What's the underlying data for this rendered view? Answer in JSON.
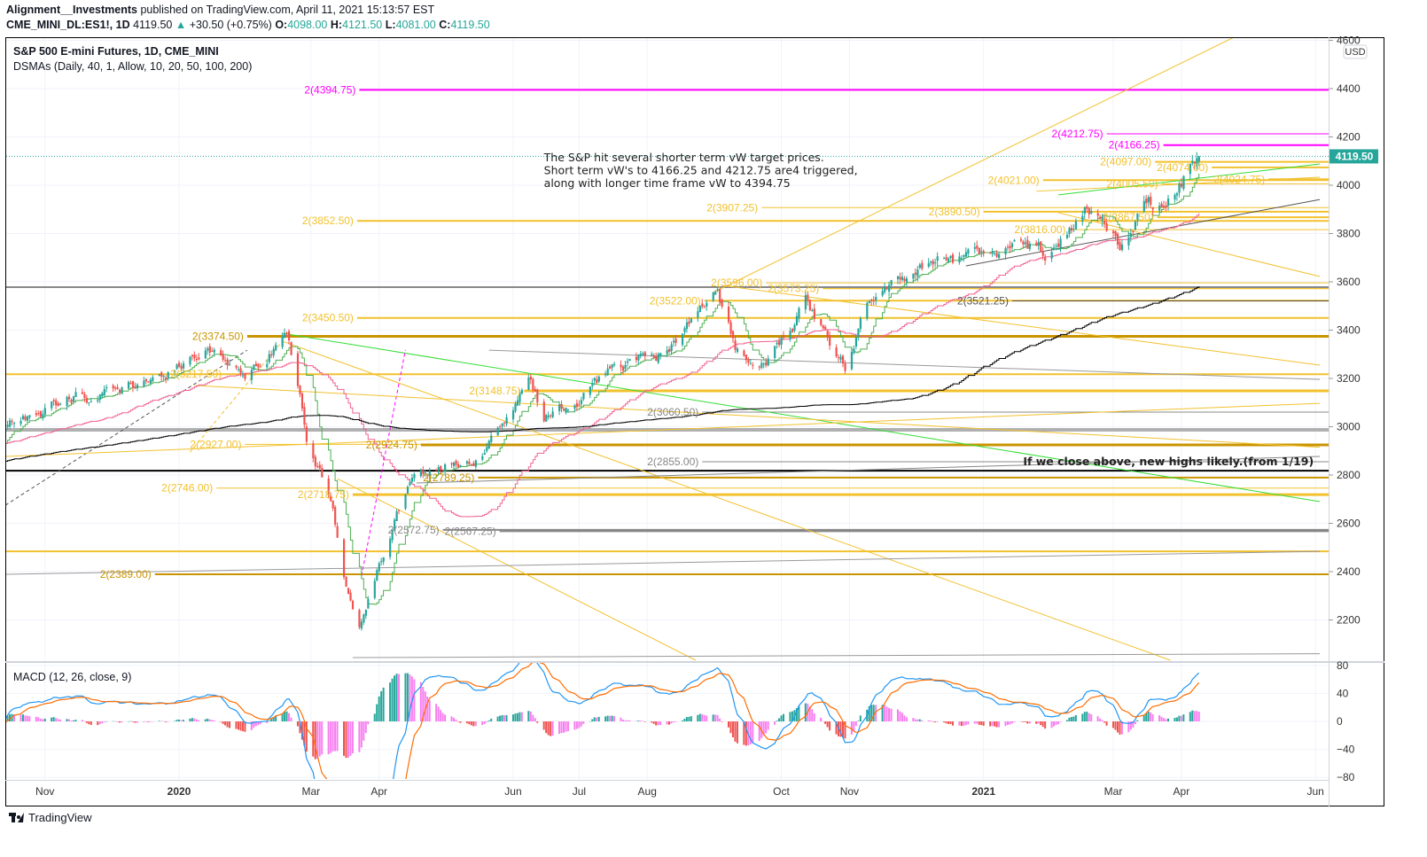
{
  "header": {
    "publisher": "Alignment__Investments",
    "published_text": " published on TradingView.com, April 11, 2021 15:13:57 EST",
    "symbol": "CME_MINI_DL:ES1!, 1D",
    "last": "4119.50",
    "change": "+30.50 (+0.75%)",
    "o_label": "O:",
    "o": "4098.00",
    "h_label": "H:",
    "h": "4121.50",
    "l_label": "L:",
    "l": "4081.00",
    "c_label": "C:",
    "c": "4119.50"
  },
  "legend": {
    "title": "S&P 500 E-mini Futures, 1D, CME_MINI",
    "indicator": "DSMAs (Daily, 40, 1, Allow, 10, 20, 50, 100, 200)"
  },
  "macd_legend": "MACD (12, 26, close, 9)",
  "price_axis": {
    "currency": "USD",
    "ticks": [
      4600,
      4400,
      4200,
      4000,
      3800,
      3600,
      3400,
      3200,
      3000,
      2800,
      2600,
      2400,
      2200
    ]
  },
  "macd_axis": {
    "ticks": [
      80,
      40,
      0,
      -40,
      -80
    ]
  },
  "time_axis": [
    {
      "label": "Nov",
      "date": "2019-11-01"
    },
    {
      "label": "2020",
      "date": "2020-01-01",
      "bold": true
    },
    {
      "label": "Mar",
      "date": "2020-03-01"
    },
    {
      "label": "Apr",
      "date": "2020-04-01"
    },
    {
      "label": "Jun",
      "date": "2020-06-01"
    },
    {
      "label": "Jul",
      "date": "2020-07-01"
    },
    {
      "label": "Aug",
      "date": "2020-08-01"
    },
    {
      "label": "Oct",
      "date": "2020-10-01"
    },
    {
      "label": "Nov",
      "date": "2020-11-01"
    },
    {
      "label": "2021",
      "date": "2021-01-01",
      "bold": true
    },
    {
      "label": "Mar",
      "date": "2021-03-01"
    },
    {
      "label": "Apr",
      "date": "2021-04-01"
    },
    {
      "label": "Jun",
      "date": "2021-06-01"
    }
  ],
  "last_price": {
    "value": 4119.5,
    "label": "4119.50",
    "color": "#26a69a"
  },
  "annotations": {
    "note_lines": [
      "The S&P hit several shorter term vW target prices.",
      "Short term vW's to 4166.25 and 4212.75 are4 triggered,",
      "along with longer time frame vW to 4394.75"
    ],
    "note_date": "2020-06-15",
    "note_price": 4100,
    "highs_note": "If we close above, new highs likely.(from 1/19)",
    "highs_note_date": "2021-01-19",
    "highs_note_price": 2855
  },
  "footer": {
    "brand": "TradingView"
  },
  "colors": {
    "up": "#26a69a",
    "down": "#ef5350",
    "gold": "#f2c12e",
    "dark_gold": "#c99400",
    "magenta": "#ff00ff",
    "gray": "#888888",
    "sma_fast": "#4caf50",
    "sma_mid": "#f06292",
    "sma_slow": "#000000",
    "macd": "#2196f3",
    "signal": "#ff6d00",
    "hist_pos": "#26a69a",
    "hist_fade": "#f77ff0",
    "hist_neg": "#ef5350"
  },
  "chart_data": {
    "type": "candlestick",
    "symbol": "ES1!",
    "interval": "1D",
    "ylim": [
      2150,
      4600
    ],
    "macd_ylim": [
      -80,
      80
    ],
    "last_bar": {
      "date": "2021-04-09",
      "open": 4098.0,
      "high": 4121.5,
      "low": 4081.0,
      "close": 4119.5
    },
    "close_path": [
      [
        "2019-10-14",
        2965
      ],
      [
        "2019-11-01",
        3060
      ],
      [
        "2019-11-15",
        3115
      ],
      [
        "2019-12-02",
        3120
      ],
      [
        "2019-12-16",
        3190
      ],
      [
        "2020-01-02",
        3250
      ],
      [
        "2020-01-17",
        3320
      ],
      [
        "2020-01-31",
        3225
      ],
      [
        "2020-02-19",
        3390
      ],
      [
        "2020-02-28",
        2950
      ],
      [
        "2020-03-09",
        2750
      ],
      [
        "2020-03-16",
        2400
      ],
      [
        "2020-03-23",
        2200
      ],
      [
        "2020-04-01",
        2450
      ],
      [
        "2020-04-15",
        2780
      ],
      [
        "2020-05-01",
        2830
      ],
      [
        "2020-05-14",
        2840
      ],
      [
        "2020-06-01",
        3050
      ],
      [
        "2020-06-08",
        3220
      ],
      [
        "2020-06-15",
        3050
      ],
      [
        "2020-07-01",
        3110
      ],
      [
        "2020-07-15",
        3220
      ],
      [
        "2020-08-03",
        3290
      ],
      [
        "2020-08-17",
        3380
      ],
      [
        "2020-09-02",
        3570
      ],
      [
        "2020-09-10",
        3340
      ],
      [
        "2020-09-24",
        3240
      ],
      [
        "2020-10-12",
        3520
      ],
      [
        "2020-10-30",
        3260
      ],
      [
        "2020-11-10",
        3540
      ],
      [
        "2020-12-01",
        3660
      ],
      [
        "2020-12-15",
        3690
      ],
      [
        "2021-01-04",
        3700
      ],
      [
        "2021-01-15",
        3790
      ],
      [
        "2021-01-29",
        3700
      ],
      [
        "2021-02-16",
        3930
      ],
      [
        "2021-03-04",
        3760
      ],
      [
        "2021-03-15",
        3950
      ],
      [
        "2021-03-25",
        3900
      ],
      [
        "2021-04-01",
        4010
      ],
      [
        "2021-04-09",
        4119.5
      ]
    ],
    "indicators": {
      "dsma_lines": [
        10,
        50,
        200
      ],
      "macd": {
        "fast": 12,
        "slow": 26,
        "source": "close",
        "signal": 9
      }
    },
    "levels": [
      {
        "price": 4394.75,
        "label": "2(4394.75)",
        "color": "#ff00ff",
        "start": "2020-02-27",
        "width": 2
      },
      {
        "price": 4212.75,
        "label": "2(4212.75)",
        "color": "#ff00ff",
        "start": "2021-02-01",
        "width": 1
      },
      {
        "price": 4166.25,
        "label": "2(4166.25)",
        "color": "#ff00ff",
        "start": "2021-02-04",
        "width": 2
      },
      {
        "price": 4097.0,
        "label": "2(4097.00)",
        "color": "#f2c12e",
        "start": "2021-02-23",
        "width": 2
      },
      {
        "price": 4074.0,
        "label": "2(4074.00)",
        "color": "#f2c12e",
        "start": "2021-02-04",
        "width": 2
      },
      {
        "price": 4024.75,
        "label": "2(4024.75)",
        "color": "#f2c12e",
        "start": "2021-02-26",
        "width": 2
      },
      {
        "price": 4021.0,
        "label": "2(4021.00)",
        "color": "#f2c12e",
        "start": "2021-01-03",
        "width": 2
      },
      {
        "price": 4005.5,
        "label": "2(4005.50)",
        "color": "#f2c12e",
        "start": "2021-02-26",
        "width": 1
      },
      {
        "price": 3907.25,
        "label": "2(3907.25)",
        "color": "#f2c12e",
        "start": "2020-08-28",
        "width": 1
      },
      {
        "price": 3890.5,
        "label": "2(3890.50)",
        "color": "#f2c12e",
        "start": "2020-12-07",
        "width": 2
      },
      {
        "price": 3867.5,
        "label": "2(3867.50)",
        "color": "#f2c12e",
        "start": "2021-02-24",
        "width": 2
      },
      {
        "price": 3852.5,
        "label": "2(3852.50)",
        "color": "#f2c12e",
        "start": "2020-02-26",
        "width": 2
      },
      {
        "price": 3816.0,
        "label": "2(3816.00)",
        "color": "#f2c12e",
        "start": "2021-01-15",
        "width": 1
      },
      {
        "price": 3596.0,
        "label": "2(3596.00)",
        "color": "#f2c12e",
        "start": "2020-08-30",
        "width": 1
      },
      {
        "price": 3573.25,
        "label": "2(3573.25)",
        "color": "#f2c12e",
        "start": "2020-08-06",
        "width": 2
      },
      {
        "price": 3522.0,
        "label": "2(3522.00)",
        "color": "#f2c12e",
        "start": "2020-08-02",
        "width": 2
      },
      {
        "price": 3521.25,
        "label": "2(3521.25)",
        "color": "#555555",
        "start": "2020-12-20",
        "width": 1
      },
      {
        "price": 3450.5,
        "label": "2(3450.50)",
        "color": "#f2c12e",
        "start": "2020-02-26",
        "width": 2
      },
      {
        "price": 3374.5,
        "label": "2(3374.50)",
        "color": "#c99400",
        "start": "2020-01-07",
        "width": 3
      },
      {
        "price": 3217.5,
        "label": "2(3217.50)",
        "color": "#f2c12e",
        "start": "2019-12-28",
        "width": 2,
        "full": true
      },
      {
        "price": 3148.75,
        "label": "2(3148.75)",
        "color": "#f2c12e",
        "start": "2020-05-12",
        "width": 3
      },
      {
        "price": 3060.5,
        "label": "2(3060.50)",
        "color": "#888888",
        "start": "2020-08-01",
        "width": 1
      },
      {
        "price": 2927.0,
        "label": "2(2927.00)",
        "color": "#f2c12e",
        "start": "2020-01-06",
        "width": 1
      },
      {
        "price": 2924.75,
        "label": "2(2924.75)",
        "color": "#c99400",
        "start": "2020-03-26",
        "width": 3
      },
      {
        "price": 2855.0,
        "label": "2(2855.00)",
        "color": "#888888",
        "start": "2020-08-01",
        "width": 1
      },
      {
        "price": 2789.25,
        "label": "2(2789.25)",
        "color": "#c99400",
        "start": "2020-04-21",
        "width": 2
      },
      {
        "price": 2746.0,
        "label": "2(2746.00)",
        "color": "#f2c12e",
        "start": "2019-12-24",
        "width": 1
      },
      {
        "price": 2718.75,
        "label": "2(2718.75)",
        "color": "#f2c12e",
        "start": "2020-02-24",
        "width": 3
      },
      {
        "price": 2572.75,
        "label": "2(2572.75)",
        "color": "#888888",
        "start": "2020-04-05",
        "width": 2
      },
      {
        "price": 2567.25,
        "label": "2(2567.25)",
        "color": "#888888",
        "start": "2020-03-20",
        "width": 2
      },
      {
        "price": 2389.0,
        "label": "2(2389.00)",
        "color": "#c99400",
        "start": "2019-11-26",
        "width": 2
      },
      {
        "price": 3578,
        "label": "",
        "color": "#888888",
        "width": 2,
        "full": true
      },
      {
        "price": 2987,
        "label": "",
        "color": "#b0b0b0",
        "width": 4,
        "full": true
      },
      {
        "price": 2818,
        "label": "",
        "color": "#000000",
        "width": 2,
        "full": true
      },
      {
        "price": 2484,
        "label": "",
        "color": "#f2c12e",
        "width": 2,
        "full": true
      }
    ],
    "trend_lines": [
      {
        "from": [
          "2020-08-31",
          3556
        ],
        "to": [
          "2021-04-25",
          4613
        ],
        "color": "#f2c12e"
      },
      {
        "from": [
          "2020-02-17",
          3387
        ],
        "to": [
          "2021-06-03",
          2690
        ],
        "color": "#33dd33"
      },
      {
        "from": [
          "2019-10-14",
          2675
        ],
        "to": [
          "2020-02-01",
          3317
        ],
        "color": "#555555",
        "dash": true
      },
      {
        "from": [
          "2020-03-24",
          2382
        ],
        "to": [
          "2020-04-13",
          3318
        ],
        "color": "#ff00ff",
        "dash": true
      },
      {
        "from": [
          "2020-01-06",
          2895
        ],
        "to": [
          "2020-02-17",
          3354
        ],
        "color": "#f2c12e",
        "dash": true
      },
      {
        "from": [
          "2019-10-14",
          2877
        ],
        "to": [
          "2021-06-03",
          3097
        ],
        "color": "#f2c12e"
      },
      {
        "from": [
          "2020-03-13",
          2785
        ],
        "to": [
          "2020-08-23",
          2033
        ],
        "color": "#f2c12e"
      },
      {
        "from": [
          "2020-02-17",
          3354
        ],
        "to": [
          "2021-03-27",
          2033
        ],
        "color": "#f2c12e"
      },
      {
        "from": [
          "2020-01-08",
          3171
        ],
        "to": [
          "2021-06-03",
          2915
        ],
        "color": "#f2c12e"
      },
      {
        "from": [
          "2020-09-04",
          3585
        ],
        "to": [
          "2021-06-03",
          3255
        ],
        "color": "#f2c12e"
      },
      {
        "from": [
          "2020-05-21",
          3317
        ],
        "to": [
          "2021-06-03",
          3196
        ],
        "color": "#999999"
      },
      {
        "from": [
          "2020-04-18",
          2767
        ],
        "to": [
          "2021-06-03",
          2877
        ],
        "color": "#888888"
      },
      {
        "from": [
          "2019-10-14",
          2389
        ],
        "to": [
          "2021-06-03",
          2484
        ],
        "color": "#999999"
      },
      {
        "from": [
          "2020-12-24",
          3666
        ],
        "to": [
          "2021-06-03",
          3941
        ],
        "color": "#555555"
      },
      {
        "from": [
          "2021-02-04",
          3886
        ],
        "to": [
          "2021-06-03",
          3622
        ],
        "color": "#f2c12e"
      },
      {
        "from": [
          "2021-01-25",
          3975
        ],
        "to": [
          "2021-06-03",
          4033
        ],
        "color": "#f2c12e"
      },
      {
        "from": [
          "2021-02-04",
          3960
        ],
        "to": [
          "2021-06-03",
          4088
        ],
        "color": "#33dd33"
      },
      {
        "from": [
          "2020-03-20",
          2044
        ],
        "to": [
          "2021-06-03",
          2060
        ],
        "color": "#999999"
      }
    ]
  }
}
